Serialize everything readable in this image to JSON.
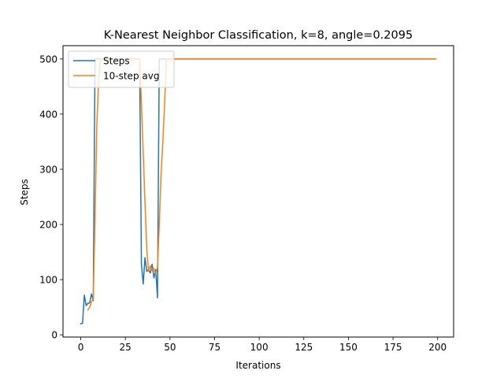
{
  "chart_data": {
    "type": "line",
    "title": "K-Nearest Neighbor Classification, k=8, angle=0.2095",
    "xlabel": "Iterations",
    "ylabel": "Steps",
    "xlim": [
      -9.95,
      208.95
    ],
    "ylim": [
      -4.05,
      524.05
    ],
    "xticks": [
      0,
      25,
      50,
      75,
      100,
      125,
      150,
      175,
      200
    ],
    "yticks": [
      0,
      100,
      200,
      300,
      400,
      500
    ],
    "grid": false,
    "legend": "top-left",
    "series": [
      {
        "name": "Steps",
        "color": "#1f77b4",
        "x": [
          0,
          1,
          2,
          3,
          4,
          5,
          6,
          7,
          8,
          9,
          10,
          11,
          12,
          13,
          14,
          15,
          16,
          17,
          18,
          19,
          20,
          21,
          22,
          23,
          24,
          25,
          26,
          27,
          28,
          29,
          30,
          31,
          32,
          33,
          34,
          35,
          36,
          37,
          38,
          39,
          40,
          41,
          42,
          43,
          44,
          45,
          46,
          47,
          48,
          49,
          50,
          199
        ],
        "y": [
          20,
          21,
          72,
          53,
          57,
          58,
          74,
          62,
          500,
          500,
          500,
          500,
          500,
          500,
          500,
          500,
          500,
          500,
          500,
          500,
          500,
          500,
          500,
          500,
          500,
          500,
          500,
          500,
          500,
          500,
          500,
          500,
          500,
          500,
          128,
          92,
          140,
          115,
          118,
          112,
          128,
          103,
          118,
          67,
          500,
          500,
          500,
          500,
          500,
          500,
          500,
          500
        ]
      },
      {
        "name": "10-step avg",
        "color": "#ff7f0e",
        "x": [
          4,
          5,
          6,
          7,
          8,
          9,
          10,
          11,
          12,
          13,
          14,
          15,
          16,
          17,
          18,
          19,
          20,
          21,
          22,
          23,
          24,
          25,
          26,
          27,
          28,
          29,
          30,
          31,
          32,
          33,
          34,
          35,
          36,
          37,
          38,
          39,
          40,
          41,
          42,
          43,
          44,
          45,
          46,
          47,
          48,
          49,
          50,
          199
        ],
        "y": [
          45,
          50,
          60,
          65,
          210,
          380,
          460,
          500,
          500,
          500,
          500,
          500,
          500,
          500,
          500,
          500,
          500,
          500,
          500,
          500,
          500,
          500,
          500,
          500,
          500,
          500,
          500,
          500,
          500,
          500,
          420,
          330,
          240,
          155,
          115,
          125,
          117,
          120,
          110,
          122,
          200,
          290,
          350,
          420,
          500,
          500,
          500,
          500
        ]
      }
    ]
  }
}
